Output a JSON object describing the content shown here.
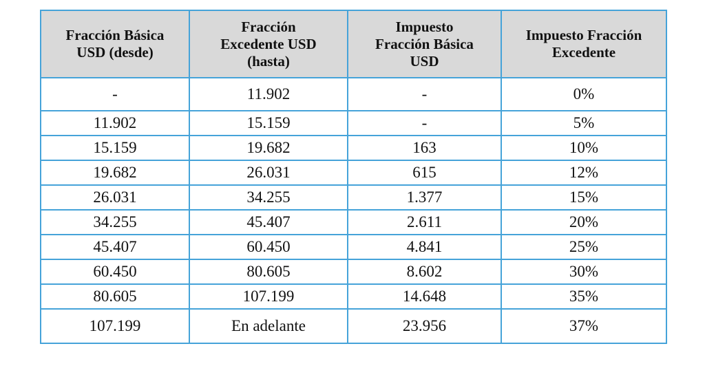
{
  "table": {
    "header": [
      [
        "Fracción Básica",
        "USD (desde)"
      ],
      [
        "Fracción",
        "Excedente USD",
        "(hasta)"
      ],
      [
        "Impuesto",
        "Fracción Básica",
        "USD"
      ],
      [
        "Impuesto Fracción",
        "Excedente"
      ]
    ],
    "rows": [
      [
        "-",
        "11.902",
        "-",
        "0%"
      ],
      [
        "11.902",
        "15.159",
        "-",
        "5%"
      ],
      [
        "15.159",
        "19.682",
        "163",
        "10%"
      ],
      [
        "19.682",
        "26.031",
        "615",
        "12%"
      ],
      [
        "26.031",
        "34.255",
        "1.377",
        "15%"
      ],
      [
        "34.255",
        "45.407",
        "2.611",
        "20%"
      ],
      [
        "45.407",
        "60.450",
        "4.841",
        "25%"
      ],
      [
        "60.450",
        "80.605",
        "8.602",
        "30%"
      ],
      [
        "80.605",
        "107.199",
        "14.648",
        "35%"
      ],
      [
        "107.199",
        "En adelante",
        "23.956",
        "37%"
      ]
    ]
  }
}
